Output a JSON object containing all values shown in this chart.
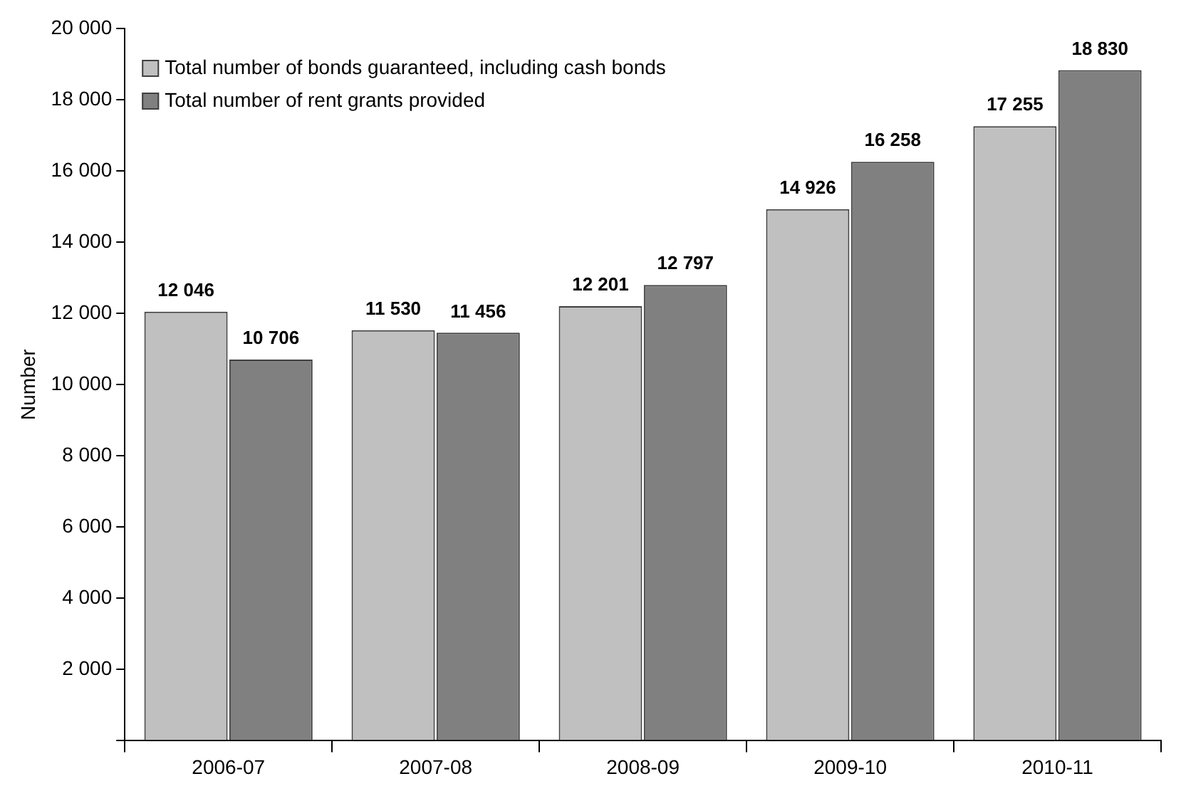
{
  "chart_data": {
    "type": "bar",
    "ylabel": "Number",
    "categories": [
      "2006-07",
      "2007-08",
      "2008-09",
      "2009-10",
      "2010-11"
    ],
    "series": [
      {
        "name": "Total number of bonds guaranteed, including cash bonds",
        "color": "#c0c0c0",
        "values": [
          12046,
          11530,
          12201,
          14926,
          17255
        ],
        "value_labels": [
          "12 046",
          "11 530",
          "12 201",
          "14 926",
          "17 255"
        ]
      },
      {
        "name": "Total number of rent grants provided",
        "color": "#808080",
        "values": [
          10706,
          11456,
          12797,
          16258,
          18830
        ],
        "value_labels": [
          "10 706",
          "11 456",
          "12 797",
          "16 258",
          "18 830"
        ]
      }
    ],
    "ylim": [
      0,
      20000
    ],
    "yticks": [
      {
        "value": 0,
        "label": null
      },
      {
        "value": 2000,
        "label": "2 000"
      },
      {
        "value": 4000,
        "label": "4 000"
      },
      {
        "value": 6000,
        "label": "6 000"
      },
      {
        "value": 8000,
        "label": "8 000"
      },
      {
        "value": 10000,
        "label": "10 000"
      },
      {
        "value": 12000,
        "label": "12 000"
      },
      {
        "value": 14000,
        "label": "14 000"
      },
      {
        "value": 16000,
        "label": "16 000"
      },
      {
        "value": 18000,
        "label": "18 000"
      },
      {
        "value": 20000,
        "label": "20 000"
      }
    ],
    "grid": false,
    "legend": "top left"
  }
}
